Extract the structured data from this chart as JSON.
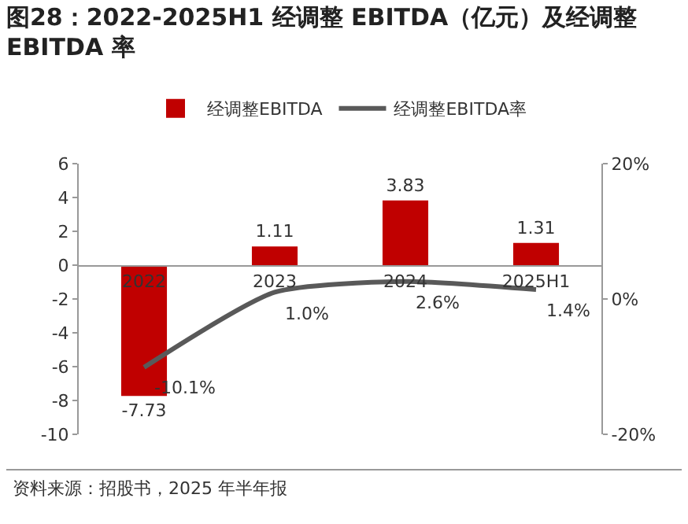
{
  "chart_data": {
    "type": "bar",
    "title": "图28：2022-2025H1 经调整 EBITDA（亿元）及经调整 EBITDA 率",
    "categories": [
      "2022",
      "2023",
      "2024",
      "2025H1"
    ],
    "series": [
      {
        "name": "经调整EBITDA",
        "color": "#c00000",
        "values": [
          -7.73,
          1.11,
          3.83,
          1.31
        ]
      },
      {
        "name": "经调整EBITDA率",
        "type": "line",
        "axis": "y2",
        "color": "#595959",
        "values": [
          -10.1,
          1.0,
          2.6,
          1.4
        ],
        "value_labels": [
          "-10.1%",
          "1.0%",
          "2.6%",
          "1.4%"
        ]
      }
    ],
    "data_labels": true,
    "ylim": [
      -10,
      6
    ],
    "yticks": [
      -10,
      -8,
      -6,
      -4,
      -2,
      0,
      2,
      4,
      6
    ],
    "y2lim": [
      -20,
      20
    ],
    "y2ticks": [
      {
        "value": -20,
        "label": "-20%"
      },
      {
        "value": 0,
        "label": "0%"
      },
      {
        "value": 20,
        "label": "20%"
      }
    ],
    "legend": "top",
    "grid": false,
    "marker": "none",
    "annotations": [
      "资料来源：招股书，2025 年半年报"
    ]
  }
}
